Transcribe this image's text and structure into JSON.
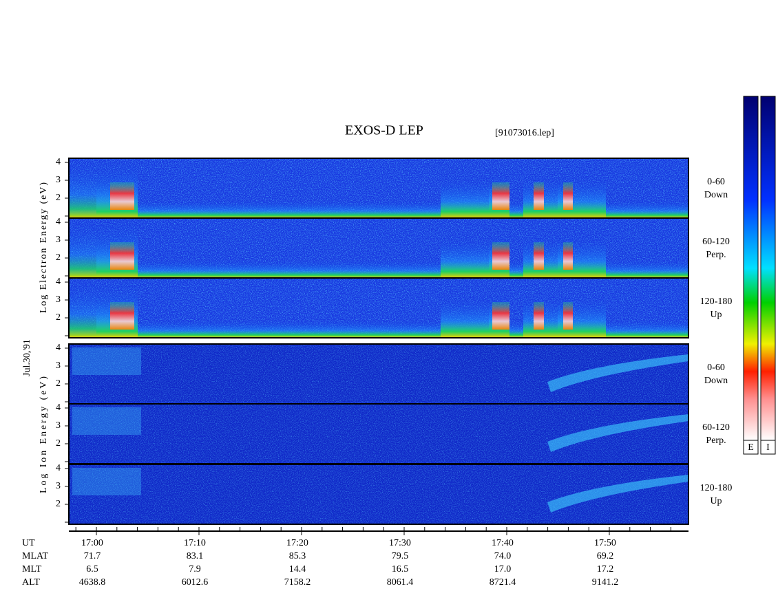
{
  "title": "EXOS-D LEP",
  "file": "[91073016.lep]",
  "date": "Jul.30,'91",
  "electron_axis_label": "Log Electron Energy (eV)",
  "ion_axis_label": "Log Ion Energy (eV)",
  "yticks": [
    4,
    3,
    2
  ],
  "panels": [
    {
      "pitch": "0-60",
      "direction": "Down"
    },
    {
      "pitch": "60-120",
      "direction": "Perp."
    },
    {
      "pitch": "120-180",
      "direction": "Up"
    },
    {
      "pitch": "0-60",
      "direction": "Down"
    },
    {
      "pitch": "60-120",
      "direction": "Perp."
    },
    {
      "pitch": "120-180",
      "direction": "Up"
    }
  ],
  "time_axis": {
    "rows": [
      {
        "label": "UT",
        "values": [
          "17:00",
          "17:10",
          "17:20",
          "17:30",
          "17:40",
          "17:50"
        ]
      },
      {
        "label": "MLAT",
        "values": [
          "71.7",
          "83.1",
          "85.3",
          "79.5",
          "74.0",
          "69.2"
        ]
      },
      {
        "label": "MLT",
        "values": [
          "6.5",
          "7.9",
          "14.4",
          "16.5",
          "17.0",
          "17.2"
        ]
      },
      {
        "label": "ALT",
        "values": [
          "4638.8",
          "6012.6",
          "7158.2",
          "8061.4",
          "8721.4",
          "9141.2"
        ]
      }
    ]
  },
  "colorbars": [
    "E",
    "I"
  ]
}
